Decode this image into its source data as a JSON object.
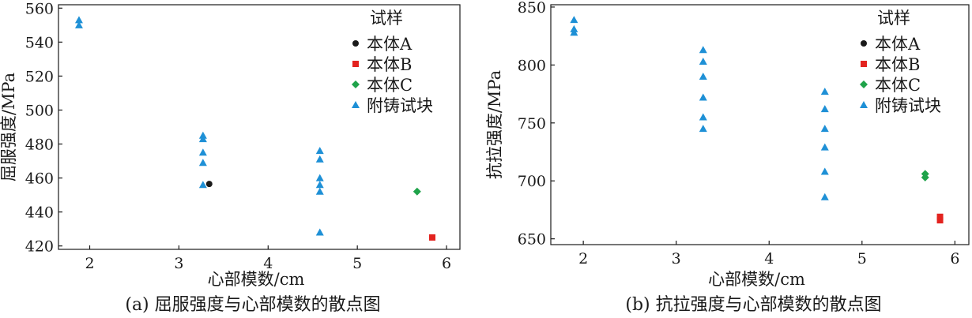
{
  "chart_data": [
    {
      "type": "scatter",
      "caption": "(a) 屈服强度与心部模数的散点图",
      "xlabel": "心部模数/cm",
      "ylabel": "屈服强度/MPa",
      "xlim": [
        1.65,
        6.15
      ],
      "ylim": [
        418,
        562
      ],
      "xticks": [
        2,
        3,
        4,
        5,
        6
      ],
      "yticks": [
        420,
        440,
        460,
        480,
        500,
        520,
        540,
        560
      ],
      "legend_title": "试样",
      "legend_position": "top-right",
      "series": [
        {
          "name": "本体A",
          "marker": "circle",
          "color": "#1a1a1a",
          "points": [
            [
              3.34,
              456.5
            ]
          ]
        },
        {
          "name": "本体B",
          "marker": "square",
          "color": "#e3231f",
          "points": [
            [
              5.84,
              425
            ]
          ]
        },
        {
          "name": "本体C",
          "marker": "diamond",
          "color": "#1fa34a",
          "points": [
            [
              5.67,
              452
            ]
          ]
        },
        {
          "name": "附铸试块",
          "marker": "triangle",
          "color": "#1e90d6",
          "points": [
            [
              1.88,
              550
            ],
            [
              1.88,
              553
            ],
            [
              3.27,
              456
            ],
            [
              3.27,
              469
            ],
            [
              3.27,
              475
            ],
            [
              3.27,
              483
            ],
            [
              3.27,
              485
            ],
            [
              4.58,
              428
            ],
            [
              4.58,
              452
            ],
            [
              4.58,
              456
            ],
            [
              4.58,
              460
            ],
            [
              4.58,
              471
            ],
            [
              4.58,
              476
            ]
          ]
        }
      ]
    },
    {
      "type": "scatter",
      "caption": "(b) 抗拉强度与心部模数的散点图",
      "xlabel": "心部模数/cm",
      "ylabel": "抗拉强度/MPa",
      "xlim": [
        1.65,
        6.15
      ],
      "ylim": [
        645,
        852
      ],
      "xticks": [
        2,
        3,
        4,
        5,
        6
      ],
      "yticks": [
        650,
        700,
        750,
        800,
        850
      ],
      "legend_title": "试样",
      "legend_position": "top-right",
      "series": [
        {
          "name": "本体A",
          "marker": "circle",
          "color": "#1a1a1a",
          "points": []
        },
        {
          "name": "本体B",
          "marker": "square",
          "color": "#e3231f",
          "points": [
            [
              5.84,
              666
            ],
            [
              5.84,
              669
            ]
          ]
        },
        {
          "name": "本体C",
          "marker": "diamond",
          "color": "#1fa34a",
          "points": [
            [
              5.68,
              703
            ],
            [
              5.68,
              706
            ]
          ]
        },
        {
          "name": "附铸试块",
          "marker": "triangle",
          "color": "#1e90d6",
          "points": [
            [
              1.9,
              828
            ],
            [
              1.9,
              831
            ],
            [
              1.9,
              839
            ],
            [
              3.29,
              745
            ],
            [
              3.29,
              755
            ],
            [
              3.29,
              772
            ],
            [
              3.29,
              790
            ],
            [
              3.29,
              803
            ],
            [
              3.29,
              813
            ],
            [
              4.6,
              686
            ],
            [
              4.6,
              708
            ],
            [
              4.6,
              729
            ],
            [
              4.6,
              745
            ],
            [
              4.6,
              762
            ],
            [
              4.6,
              777
            ]
          ]
        }
      ]
    }
  ]
}
